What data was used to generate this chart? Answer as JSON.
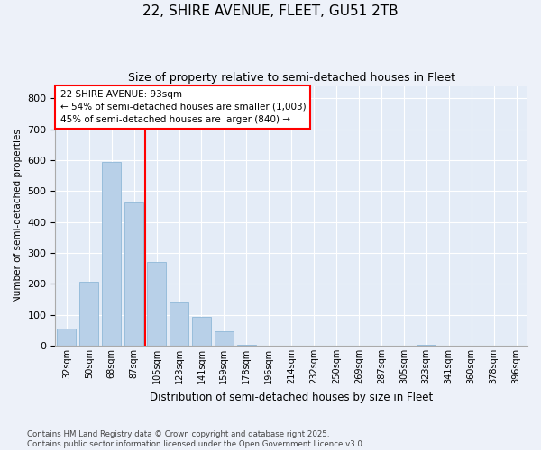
{
  "title": "22, SHIRE AVENUE, FLEET, GU51 2TB",
  "subtitle": "Size of property relative to semi-detached houses in Fleet",
  "xlabel": "Distribution of semi-detached houses by size in Fleet",
  "ylabel": "Number of semi-detached properties",
  "categories": [
    "32sqm",
    "50sqm",
    "68sqm",
    "87sqm",
    "105sqm",
    "123sqm",
    "141sqm",
    "159sqm",
    "178sqm",
    "196sqm",
    "214sqm",
    "232sqm",
    "250sqm",
    "269sqm",
    "287sqm",
    "305sqm",
    "323sqm",
    "341sqm",
    "360sqm",
    "378sqm",
    "396sqm"
  ],
  "values": [
    55,
    207,
    593,
    462,
    270,
    140,
    93,
    48,
    3,
    0,
    0,
    0,
    0,
    0,
    0,
    0,
    3,
    0,
    0,
    0,
    0
  ],
  "bar_color": "#b8d0e8",
  "bar_edgecolor": "#90b8d8",
  "redline_index": 3,
  "annotation_title": "22 SHIRE AVENUE: 93sqm",
  "annotation_line1": "← 54% of semi-detached houses are smaller (1,003)",
  "annotation_line2": "45% of semi-detached houses are larger (840) →",
  "ylim_max": 840,
  "yticks": [
    0,
    100,
    200,
    300,
    400,
    500,
    600,
    700,
    800
  ],
  "footer1": "Contains HM Land Registry data © Crown copyright and database right 2025.",
  "footer2": "Contains public sector information licensed under the Open Government Licence v3.0.",
  "fig_facecolor": "#edf1f9",
  "ax_facecolor": "#e4ecf7"
}
